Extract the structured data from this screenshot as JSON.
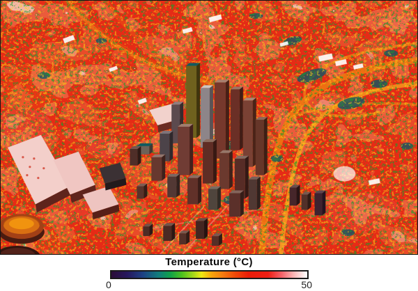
{
  "figure": {
    "kind": "thermal-infrared-city-map",
    "description": "Aerial thermal image of a downtown urban area with 3D building blocks; hot surfaces red/orange, cool spots teal/green, hottest rooftops white",
    "map_colors": {
      "hot_base": "#e23418",
      "warm_road": "#f0821a",
      "cool_patch": "#0a5766",
      "vegetation_speck": "#1aa128",
      "hot_roof_white": "#ffffff"
    }
  },
  "legend": {
    "title": "Temperature (°C)",
    "units": "°C",
    "min_label": "0",
    "max_label": "50",
    "gradient_stops": [
      "#2b0d38",
      "#26175d",
      "#1d4184",
      "#117c7c",
      "#0fa149",
      "#4cc01e",
      "#a8d81a",
      "#eee914",
      "#f9a60b",
      "#f47a10",
      "#ef4a08",
      "#ea1c07",
      "#ee1e14",
      "#f4636a",
      "#fab4b4",
      "#ffffff"
    ],
    "gradient_style": "background-image:linear-gradient(to right,#2b0d38 0%,#26175d 8%,#1d4184 16%,#117c7c 24%,#0fa149 30%,#4cc01e 36%,#a8d81a 42%,#eee914 46%,#f9a60b 51%,#f47a10 57%,#ef4a08 63%,#ea1c07 70%,#ee1e14 80%,#f4636a 87%,#fab4b4 93%,#ffffff 100%)"
  },
  "chart_data": {
    "type": "heatmap",
    "title": "Temperature (°C)",
    "colorbar": {
      "orientation": "horizontal",
      "min": 0,
      "max": 50,
      "tick_labels": [
        "0",
        "50"
      ],
      "scale_colors_low_to_high": [
        "dark purple",
        "navy",
        "blue",
        "teal",
        "green",
        "yellow-green",
        "yellow",
        "orange",
        "red",
        "pink",
        "white"
      ]
    }
  }
}
